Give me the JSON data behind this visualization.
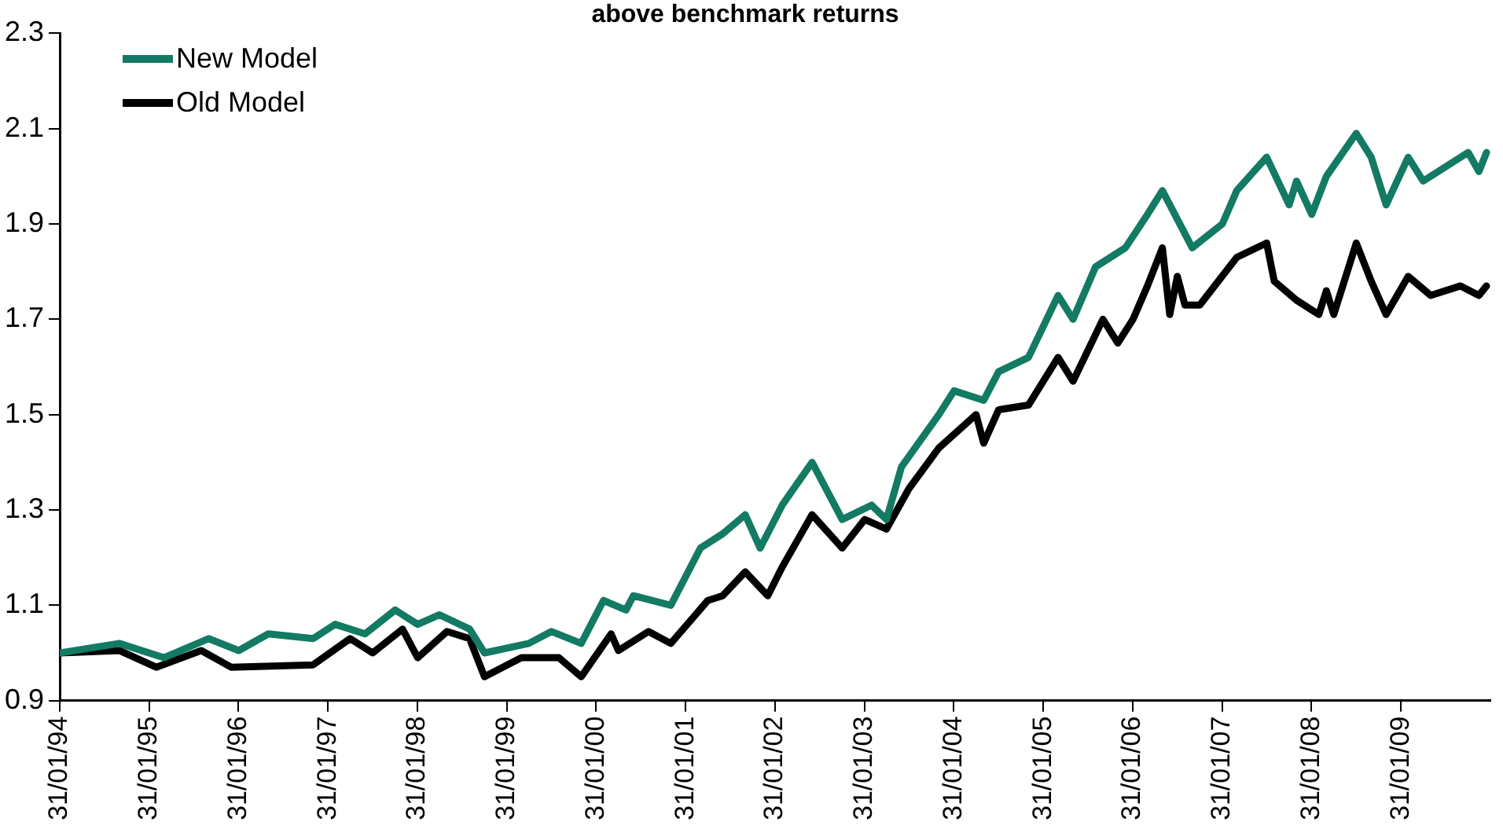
{
  "chart_data": {
    "type": "line",
    "title": "above benchmark returns",
    "xlim": [
      "1994-01-31",
      "2010-01-31"
    ],
    "xticks": [
      {
        "value": "1994-01-31",
        "label": "31/01/94"
      },
      {
        "value": "1995-01-31",
        "label": "31/01/95"
      },
      {
        "value": "1996-01-31",
        "label": "31/01/96"
      },
      {
        "value": "1997-01-31",
        "label": "31/01/97"
      },
      {
        "value": "1998-01-31",
        "label": "31/01/98"
      },
      {
        "value": "1999-01-31",
        "label": "31/01/99"
      },
      {
        "value": "2000-01-31",
        "label": "31/01/00"
      },
      {
        "value": "2001-01-31",
        "label": "31/01/01"
      },
      {
        "value": "2002-01-31",
        "label": "31/01/02"
      },
      {
        "value": "2003-01-31",
        "label": "31/01/03"
      },
      {
        "value": "2004-01-31",
        "label": "31/01/04"
      },
      {
        "value": "2005-01-31",
        "label": "31/01/05"
      },
      {
        "value": "2006-01-31",
        "label": "31/01/06"
      },
      {
        "value": "2007-01-31",
        "label": "31/01/07"
      },
      {
        "value": "2008-01-31",
        "label": "31/01/08"
      },
      {
        "value": "2009-01-31",
        "label": "31/01/09"
      }
    ],
    "ylim": [
      0.9,
      2.3
    ],
    "yticks": [
      0.9,
      1.1,
      1.3,
      1.5,
      1.7,
      1.9,
      2.1,
      2.3
    ],
    "legend": "top left",
    "marker": "none",
    "line_style": "solid",
    "series": [
      {
        "name": "New Model",
        "color": "#137a63",
        "x": [
          "1994-01-31",
          "1994-10",
          "1995-04",
          "1995-10",
          "1996-02",
          "1996-06",
          "1996-12",
          "1997-03",
          "1997-07",
          "1997-11",
          "1998-02",
          "1998-05",
          "1998-09",
          "1998-11",
          "1999-05",
          "1999-08",
          "1999-12",
          "2000-03",
          "2000-06",
          "2000-07",
          "2000-12",
          "2001-04",
          "2001-07",
          "2001-10",
          "2001-12",
          "2002-03",
          "2002-07",
          "2002-11",
          "2003-03",
          "2003-05",
          "2003-07",
          "2003-12",
          "2004-02",
          "2004-06",
          "2004-08",
          "2004-12",
          "2005-04",
          "2005-06",
          "2005-09",
          "2006-01",
          "2006-04",
          "2006-06",
          "2006-10",
          "2007-02",
          "2007-04",
          "2007-08",
          "2007-11",
          "2007-12",
          "2008-02",
          "2008-04",
          "2008-08",
          "2008-10",
          "2008-12",
          "2009-03",
          "2009-05",
          "2009-11",
          "2009-12-15",
          "2010-01-15"
        ],
        "values": [
          1.0,
          1.02,
          0.99,
          1.03,
          1.005,
          1.04,
          1.03,
          1.06,
          1.04,
          1.09,
          1.06,
          1.08,
          1.05,
          1.0,
          1.02,
          1.045,
          1.02,
          1.11,
          1.09,
          1.12,
          1.1,
          1.22,
          1.25,
          1.29,
          1.22,
          1.31,
          1.4,
          1.28,
          1.31,
          1.28,
          1.39,
          1.5,
          1.55,
          1.53,
          1.59,
          1.62,
          1.75,
          1.7,
          1.81,
          1.85,
          1.92,
          1.97,
          1.85,
          1.9,
          1.97,
          2.04,
          1.94,
          1.99,
          1.92,
          2.0,
          2.09,
          2.04,
          1.94,
          2.04,
          1.99,
          2.05,
          2.01,
          2.05
        ]
      },
      {
        "name": "Old Model",
        "color": "#000000",
        "x": [
          "1994-01-31",
          "1994-10",
          "1995-03",
          "1995-09",
          "1996-01",
          "1996-12",
          "1997-05",
          "1997-08",
          "1997-12",
          "1998-02",
          "1998-06",
          "1998-09",
          "1998-11",
          "1999-04",
          "1999-09",
          "1999-12",
          "2000-04",
          "2000-05",
          "2000-09",
          "2000-12",
          "2001-05",
          "2001-07",
          "2001-10",
          "2002-01",
          "2002-03",
          "2002-07",
          "2002-11",
          "2003-02",
          "2003-05",
          "2003-08",
          "2003-12",
          "2004-05",
          "2004-06",
          "2004-08",
          "2004-12",
          "2005-04",
          "2005-06",
          "2005-10",
          "2005-12",
          "2006-02",
          "2006-04",
          "2006-06",
          "2006-07",
          "2006-08",
          "2006-09",
          "2006-11",
          "2007-04",
          "2007-08",
          "2007-09",
          "2007-12",
          "2008-03",
          "2008-04",
          "2008-05",
          "2008-08",
          "2008-10",
          "2008-12",
          "2009-03",
          "2009-06",
          "2009-10",
          "2009-12-15",
          "2010-01-15"
        ],
        "values": [
          1.0,
          1.005,
          0.97,
          1.005,
          0.97,
          0.975,
          1.03,
          1.0,
          1.05,
          0.99,
          1.045,
          1.03,
          0.95,
          0.99,
          0.99,
          0.95,
          1.04,
          1.005,
          1.045,
          1.02,
          1.11,
          1.12,
          1.17,
          1.12,
          1.18,
          1.29,
          1.22,
          1.28,
          1.26,
          1.345,
          1.43,
          1.5,
          1.44,
          1.51,
          1.52,
          1.62,
          1.57,
          1.7,
          1.65,
          1.7,
          1.77,
          1.85,
          1.71,
          1.79,
          1.73,
          1.73,
          1.83,
          1.86,
          1.78,
          1.74,
          1.71,
          1.76,
          1.71,
          1.86,
          1.78,
          1.71,
          1.79,
          1.75,
          1.77,
          1.75,
          1.77
        ]
      }
    ]
  }
}
